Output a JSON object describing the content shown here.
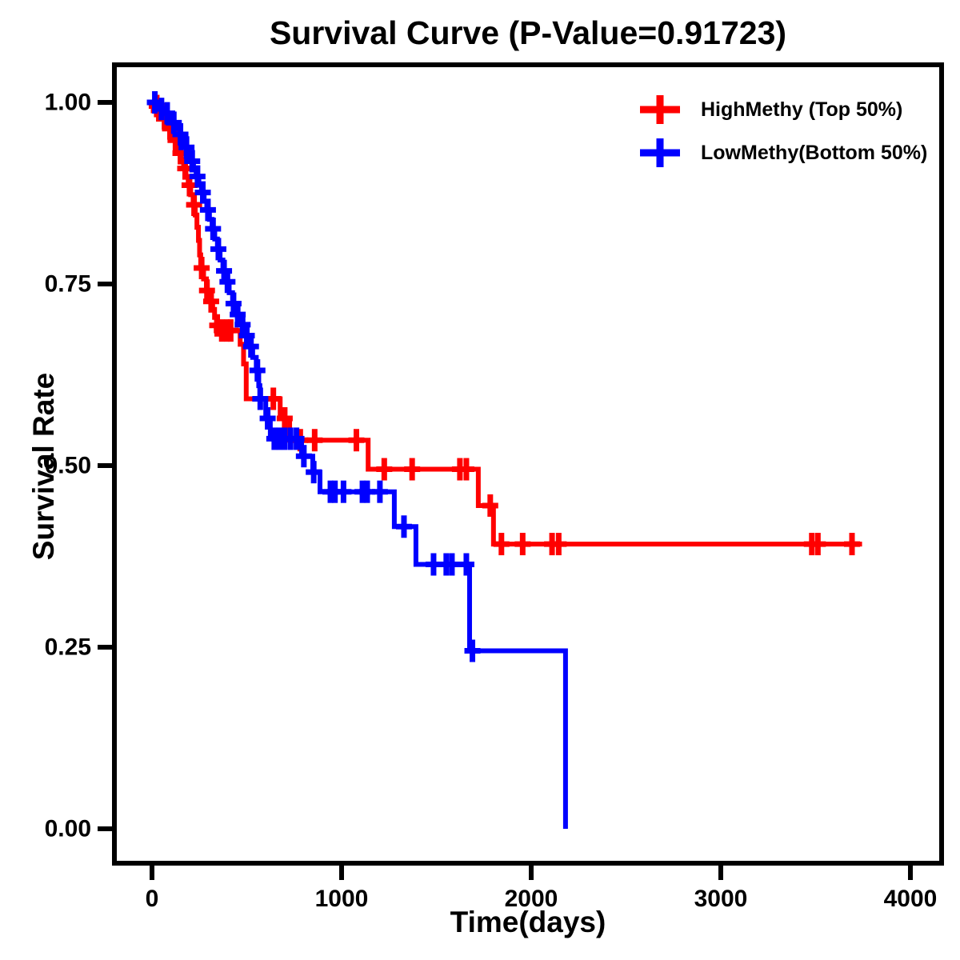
{
  "chart_data": {
    "type": "line",
    "subtype": "kaplan-meier-step-survival",
    "title": "Survival Curve (P-Value=0.91723)",
    "p_value": "0.91723",
    "xlabel": "Time(days)",
    "ylabel": "Survival Rate",
    "xlim": [
      -200,
      4160
    ],
    "ylim": [
      -0.05,
      1.05
    ],
    "grid": "off",
    "legend_position": "top-right-inside",
    "x_ticks": [
      {
        "label": "0",
        "value": 0
      },
      {
        "label": "1000",
        "value": 1000
      },
      {
        "label": "2000",
        "value": 2000
      },
      {
        "label": "3000",
        "value": 3000
      },
      {
        "label": "4000",
        "value": 4000
      }
    ],
    "y_ticks": [
      {
        "label": "1.00",
        "value": 1.0
      },
      {
        "label": "0.75",
        "value": 0.75
      },
      {
        "label": "0.50",
        "value": 0.5
      },
      {
        "label": "0.25",
        "value": 0.25
      },
      {
        "label": "0.00",
        "value": 0.0
      }
    ],
    "series": [
      {
        "name": "HighMethy (Top 50%)",
        "color": "#FF0000",
        "marker": "plus-censor",
        "end_time": 3745,
        "steps": [
          [
            0,
            1.0
          ],
          [
            18,
            0.995
          ],
          [
            32,
            0.989
          ],
          [
            46,
            0.984
          ],
          [
            60,
            0.978
          ],
          [
            74,
            0.971
          ],
          [
            88,
            0.964
          ],
          [
            102,
            0.956
          ],
          [
            115,
            0.948
          ],
          [
            128,
            0.939
          ],
          [
            141,
            0.93
          ],
          [
            154,
            0.92
          ],
          [
            167,
            0.909
          ],
          [
            179,
            0.898
          ],
          [
            191,
            0.886
          ],
          [
            204,
            0.873
          ],
          [
            217,
            0.859
          ],
          [
            228,
            0.845
          ],
          [
            237,
            0.828
          ],
          [
            245,
            0.81
          ],
          [
            251,
            0.79
          ],
          [
            257,
            0.772
          ],
          [
            272,
            0.757
          ],
          [
            287,
            0.741
          ],
          [
            297,
            0.733
          ],
          [
            308,
            0.726
          ],
          [
            320,
            0.715
          ],
          [
            330,
            0.704
          ],
          [
            340,
            0.693
          ],
          [
            358,
            0.686
          ],
          [
            465,
            0.667
          ],
          [
            483,
            0.64
          ],
          [
            497,
            0.592
          ],
          [
            676,
            0.565
          ],
          [
            726,
            0.535
          ],
          [
            1140,
            0.495
          ],
          [
            1721,
            0.445
          ],
          [
            1801,
            0.392
          ]
        ],
        "censors": [
          [
            25,
            0.995
          ],
          [
            36,
            0.989
          ],
          [
            66,
            0.978
          ],
          [
            95,
            0.964
          ],
          [
            124,
            0.948
          ],
          [
            150,
            0.93
          ],
          [
            175,
            0.909
          ],
          [
            198,
            0.886
          ],
          [
            222,
            0.859
          ],
          [
            262,
            0.772
          ],
          [
            290,
            0.741
          ],
          [
            312,
            0.726
          ],
          [
            344,
            0.693
          ],
          [
            368,
            0.686
          ],
          [
            395,
            0.686
          ],
          [
            415,
            0.686
          ],
          [
            640,
            0.592
          ],
          [
            700,
            0.565
          ],
          [
            782,
            0.535
          ],
          [
            858,
            0.535
          ],
          [
            1078,
            0.535
          ],
          [
            1225,
            0.495
          ],
          [
            1372,
            0.495
          ],
          [
            1624,
            0.495
          ],
          [
            1658,
            0.495
          ],
          [
            1784,
            0.445
          ],
          [
            1843,
            0.392
          ],
          [
            1955,
            0.392
          ],
          [
            2110,
            0.392
          ],
          [
            2145,
            0.392
          ],
          [
            3480,
            0.392
          ],
          [
            3512,
            0.392
          ],
          [
            3692,
            0.392
          ]
        ]
      },
      {
        "name": "LowMethy(Bottom 50%)",
        "color": "#0000FF",
        "marker": "plus-censor",
        "end_time": 2181,
        "steps": [
          [
            0,
            1.0
          ],
          [
            22,
            0.996
          ],
          [
            45,
            0.991
          ],
          [
            68,
            0.985
          ],
          [
            90,
            0.979
          ],
          [
            110,
            0.972
          ],
          [
            128,
            0.964
          ],
          [
            145,
            0.956
          ],
          [
            161,
            0.947
          ],
          [
            176,
            0.938
          ],
          [
            191,
            0.929
          ],
          [
            205,
            0.919
          ],
          [
            219,
            0.909
          ],
          [
            233,
            0.898
          ],
          [
            247,
            0.887
          ],
          [
            261,
            0.876
          ],
          [
            275,
            0.864
          ],
          [
            289,
            0.852
          ],
          [
            303,
            0.839
          ],
          [
            317,
            0.826
          ],
          [
            331,
            0.812
          ],
          [
            345,
            0.798
          ],
          [
            359,
            0.783
          ],
          [
            374,
            0.768
          ],
          [
            390,
            0.753
          ],
          [
            407,
            0.738
          ],
          [
            425,
            0.723
          ],
          [
            444,
            0.708
          ],
          [
            464,
            0.694
          ],
          [
            486,
            0.679
          ],
          [
            509,
            0.664
          ],
          [
            531,
            0.649
          ],
          [
            550,
            0.631
          ],
          [
            563,
            0.61
          ],
          [
            569,
            0.592
          ],
          [
            600,
            0.565
          ],
          [
            624,
            0.537
          ],
          [
            789,
            0.513
          ],
          [
            848,
            0.491
          ],
          [
            886,
            0.464
          ],
          [
            1278,
            0.416
          ],
          [
            1392,
            0.364
          ],
          [
            1675,
            0.245
          ],
          [
            2181,
            0.0
          ]
        ],
        "censors": [
          [
            15,
            1.0
          ],
          [
            50,
            0.991
          ],
          [
            80,
            0.985
          ],
          [
            115,
            0.972
          ],
          [
            150,
            0.956
          ],
          [
            182,
            0.938
          ],
          [
            212,
            0.919
          ],
          [
            240,
            0.898
          ],
          [
            268,
            0.876
          ],
          [
            295,
            0.852
          ],
          [
            322,
            0.826
          ],
          [
            350,
            0.798
          ],
          [
            380,
            0.768
          ],
          [
            398,
            0.753
          ],
          [
            430,
            0.723
          ],
          [
            452,
            0.708
          ],
          [
            478,
            0.694
          ],
          [
            500,
            0.679
          ],
          [
            522,
            0.664
          ],
          [
            556,
            0.631
          ],
          [
            571,
            0.592
          ],
          [
            610,
            0.565
          ],
          [
            645,
            0.537
          ],
          [
            672,
            0.537
          ],
          [
            700,
            0.537
          ],
          [
            731,
            0.537
          ],
          [
            762,
            0.537
          ],
          [
            801,
            0.513
          ],
          [
            853,
            0.491
          ],
          [
            941,
            0.464
          ],
          [
            965,
            0.464
          ],
          [
            1010,
            0.464
          ],
          [
            1110,
            0.464
          ],
          [
            1135,
            0.464
          ],
          [
            1202,
            0.464
          ],
          [
            1329,
            0.416
          ],
          [
            1485,
            0.364
          ],
          [
            1552,
            0.364
          ],
          [
            1582,
            0.364
          ],
          [
            1658,
            0.364
          ],
          [
            1690,
            0.245
          ]
        ]
      }
    ]
  },
  "colors": {
    "high_methy": "#FF0000",
    "low_methy": "#0000FF",
    "axis": "#000000",
    "background": "#FFFFFF"
  },
  "legend": {
    "items": [
      {
        "label": "HighMethy (Top 50%)",
        "color": "#FF0000",
        "icon": "plus-marker"
      },
      {
        "label": "LowMethy(Bottom 50%)",
        "color": "#0000FF",
        "icon": "plus-marker"
      }
    ]
  }
}
